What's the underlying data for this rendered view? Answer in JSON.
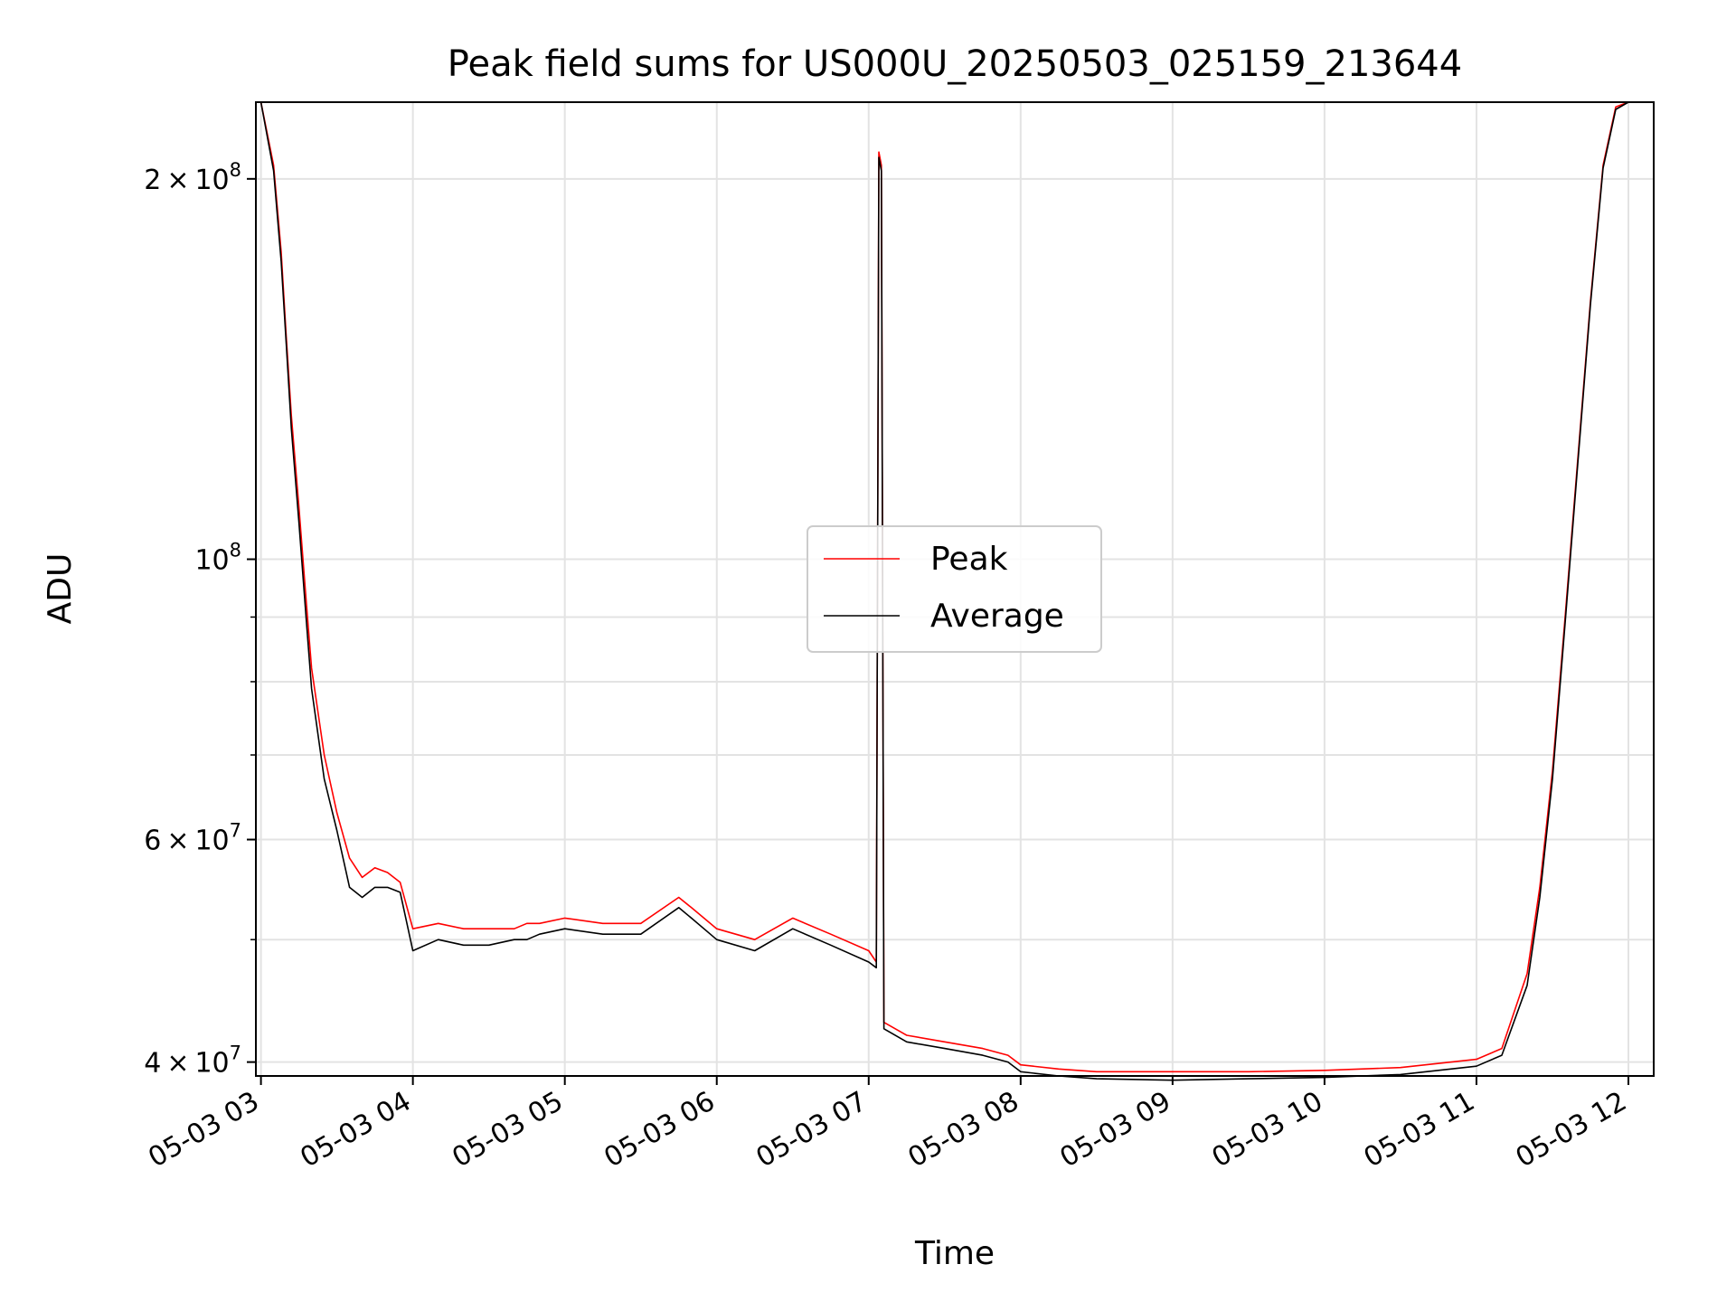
{
  "chart_data": {
    "type": "line",
    "title": "Peak field sums for US000U_20250503_025159_213644",
    "xlabel": "Time",
    "ylabel": "ADU",
    "yscale": "log",
    "xlim": [
      "2025-05-03 02:58",
      "2025-05-03 12:10"
    ],
    "ylim": [
      39000000,
      230000000
    ],
    "grid": true,
    "legend_position": "center",
    "x_ticks": [
      "05-03 03",
      "05-03 04",
      "05-03 05",
      "05-03 06",
      "05-03 07",
      "05-03 08",
      "05-03 09",
      "05-03 10",
      "05-03 11",
      "05-03 12"
    ],
    "y_ticks": [
      {
        "value": 40000000,
        "mantissa": "4",
        "exponent": "7"
      },
      {
        "value": 60000000,
        "mantissa": "6",
        "exponent": "7"
      },
      {
        "value": 100000000,
        "mantissa": "",
        "exponent": "8"
      },
      {
        "value": 200000000,
        "mantissa": "2",
        "exponent": "8"
      }
    ],
    "series": [
      {
        "name": "Peak",
        "color": "#ff0000",
        "x": [
          "03:00",
          "03:05",
          "03:08",
          "03:10",
          "03:12",
          "03:15",
          "03:18",
          "03:20",
          "03:25",
          "03:30",
          "03:35",
          "03:40",
          "03:45",
          "03:50",
          "03:55",
          "04:00",
          "04:10",
          "04:20",
          "04:30",
          "04:40",
          "04:45",
          "04:50",
          "05:00",
          "05:15",
          "05:30",
          "05:45",
          "05:50",
          "06:00",
          "06:15",
          "06:30",
          "06:45",
          "07:00",
          "07:03",
          "07:04",
          "07:05",
          "07:06",
          "07:15",
          "07:30",
          "07:45",
          "07:55",
          "08:00",
          "08:15",
          "08:30",
          "09:00",
          "09:30",
          "10:00",
          "10:30",
          "11:00",
          "11:10",
          "11:20",
          "11:25",
          "11:30",
          "11:35",
          "11:40",
          "11:45",
          "11:50",
          "11:55",
          "12:00"
        ],
        "y": [
          230000000,
          205000000,
          175000000,
          150000000,
          130000000,
          110000000,
          92000000,
          82000000,
          70000000,
          63000000,
          58000000,
          56000000,
          57000000,
          56500000,
          55500000,
          51000000,
          51500000,
          51000000,
          51000000,
          51000000,
          51500000,
          51500000,
          52000000,
          51500000,
          51500000,
          54000000,
          53000000,
          51000000,
          50000000,
          52000000,
          50500000,
          49000000,
          48000000,
          210000000,
          205000000,
          43000000,
          42000000,
          41500000,
          41000000,
          40500000,
          39800000,
          39500000,
          39300000,
          39300000,
          39300000,
          39400000,
          39600000,
          40200000,
          41000000,
          47000000,
          55000000,
          68000000,
          90000000,
          120000000,
          160000000,
          205000000,
          228000000,
          230000000
        ]
      },
      {
        "name": "Average",
        "color": "#000000",
        "x": [
          "03:00",
          "03:05",
          "03:08",
          "03:10",
          "03:12",
          "03:15",
          "03:18",
          "03:20",
          "03:25",
          "03:30",
          "03:35",
          "03:40",
          "03:45",
          "03:50",
          "03:55",
          "04:00",
          "04:10",
          "04:20",
          "04:30",
          "04:40",
          "04:45",
          "04:50",
          "05:00",
          "05:15",
          "05:30",
          "05:45",
          "05:50",
          "06:00",
          "06:15",
          "06:30",
          "06:45",
          "07:00",
          "07:03",
          "07:04",
          "07:05",
          "07:06",
          "07:15",
          "07:30",
          "07:45",
          "07:55",
          "08:00",
          "08:15",
          "08:30",
          "09:00",
          "09:30",
          "10:00",
          "10:30",
          "11:00",
          "11:10",
          "11:20",
          "11:25",
          "11:30",
          "11:35",
          "11:40",
          "11:45",
          "11:50",
          "11:55",
          "12:00"
        ],
        "y": [
          230000000,
          203000000,
          172000000,
          148000000,
          127000000,
          107000000,
          89000000,
          79000000,
          67000000,
          61000000,
          55000000,
          54000000,
          55000000,
          55000000,
          54500000,
          49000000,
          50000000,
          49500000,
          49500000,
          50000000,
          50000000,
          50500000,
          51000000,
          50500000,
          50500000,
          53000000,
          52000000,
          50000000,
          49000000,
          51000000,
          49500000,
          48000000,
          47500000,
          208000000,
          203000000,
          42500000,
          41500000,
          41000000,
          40500000,
          40000000,
          39300000,
          39000000,
          38800000,
          38700000,
          38800000,
          38900000,
          39100000,
          39700000,
          40500000,
          46000000,
          54000000,
          67000000,
          89000000,
          119000000,
          159000000,
          204000000,
          227000000,
          230000000
        ]
      }
    ]
  }
}
